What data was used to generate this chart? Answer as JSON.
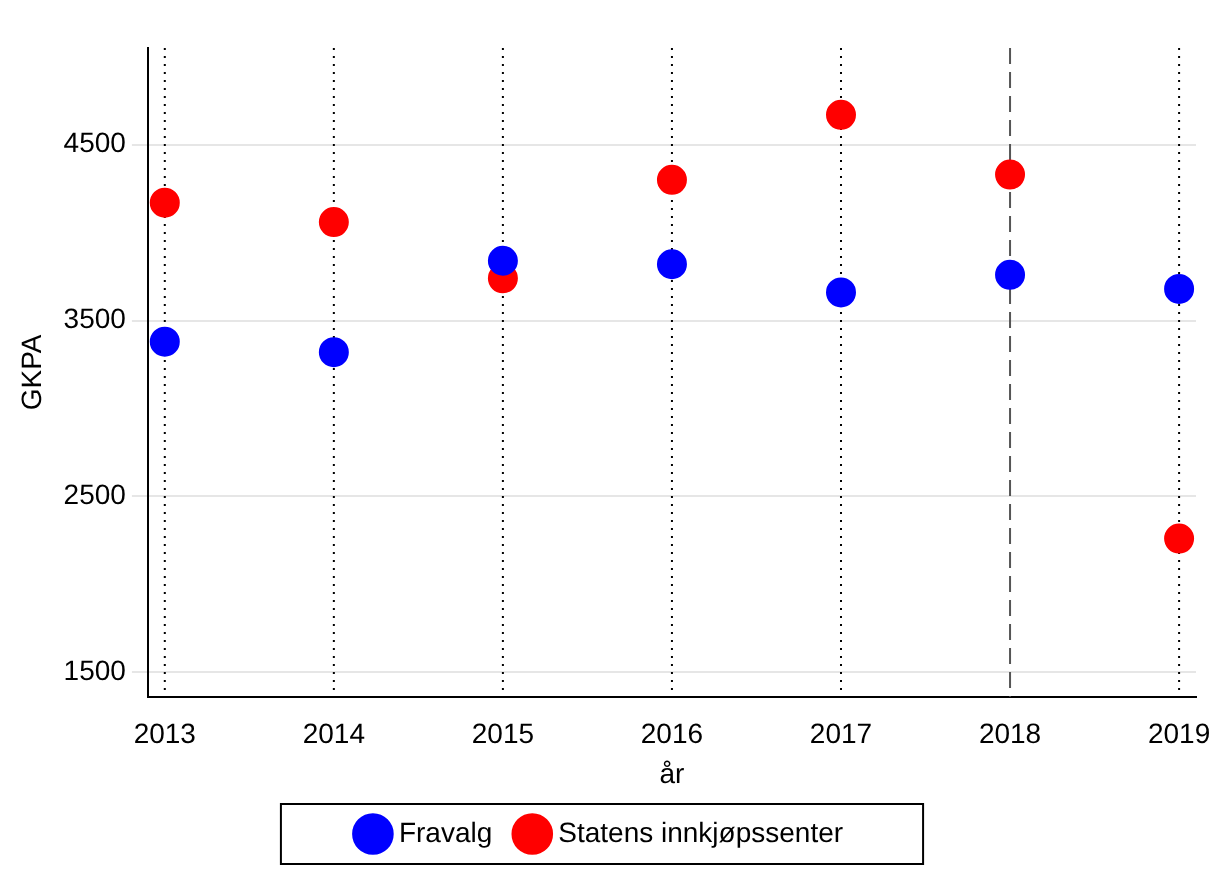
{
  "chart_data": {
    "type": "scatter",
    "xlabel": "år",
    "ylabel": "GKPA",
    "x": [
      2013,
      2014,
      2015,
      2016,
      2017,
      2018,
      2019
    ],
    "series": [
      {
        "name": "Fravalg",
        "color": "#0000ff",
        "values": [
          3380,
          3320,
          3840,
          3820,
          3660,
          3760,
          3680
        ]
      },
      {
        "name": "Statens innkjøpssenter",
        "color": "#ff0000",
        "values": [
          4170,
          4060,
          3740,
          4300,
          4670,
          4330,
          2260
        ]
      }
    ],
    "xlim": [
      2012.9,
      2019.1
    ],
    "xticks": [
      2013,
      2014,
      2015,
      2016,
      2017,
      2018,
      2019
    ],
    "ylim": [
      1360,
      5050
    ],
    "yticks": [
      1500,
      2500,
      3500,
      4500
    ],
    "ref_lines": [
      {
        "axis": "x",
        "value": 2013,
        "line_style": "dotted",
        "color": "#000000"
      },
      {
        "axis": "x",
        "value": 2014,
        "line_style": "dotted",
        "color": "#000000"
      },
      {
        "axis": "x",
        "value": 2015,
        "line_style": "dotted",
        "color": "#000000"
      },
      {
        "axis": "x",
        "value": 2016,
        "line_style": "dotted",
        "color": "#000000"
      },
      {
        "axis": "x",
        "value": 2017,
        "line_style": "dotted",
        "color": "#000000"
      },
      {
        "axis": "x",
        "value": 2018,
        "line_style": "dashed",
        "color": "#555555"
      },
      {
        "axis": "x",
        "value": 2019,
        "line_style": "dotted",
        "color": "#000000"
      }
    ],
    "grid": "y",
    "legend": "bottom",
    "marker": "circle"
  }
}
